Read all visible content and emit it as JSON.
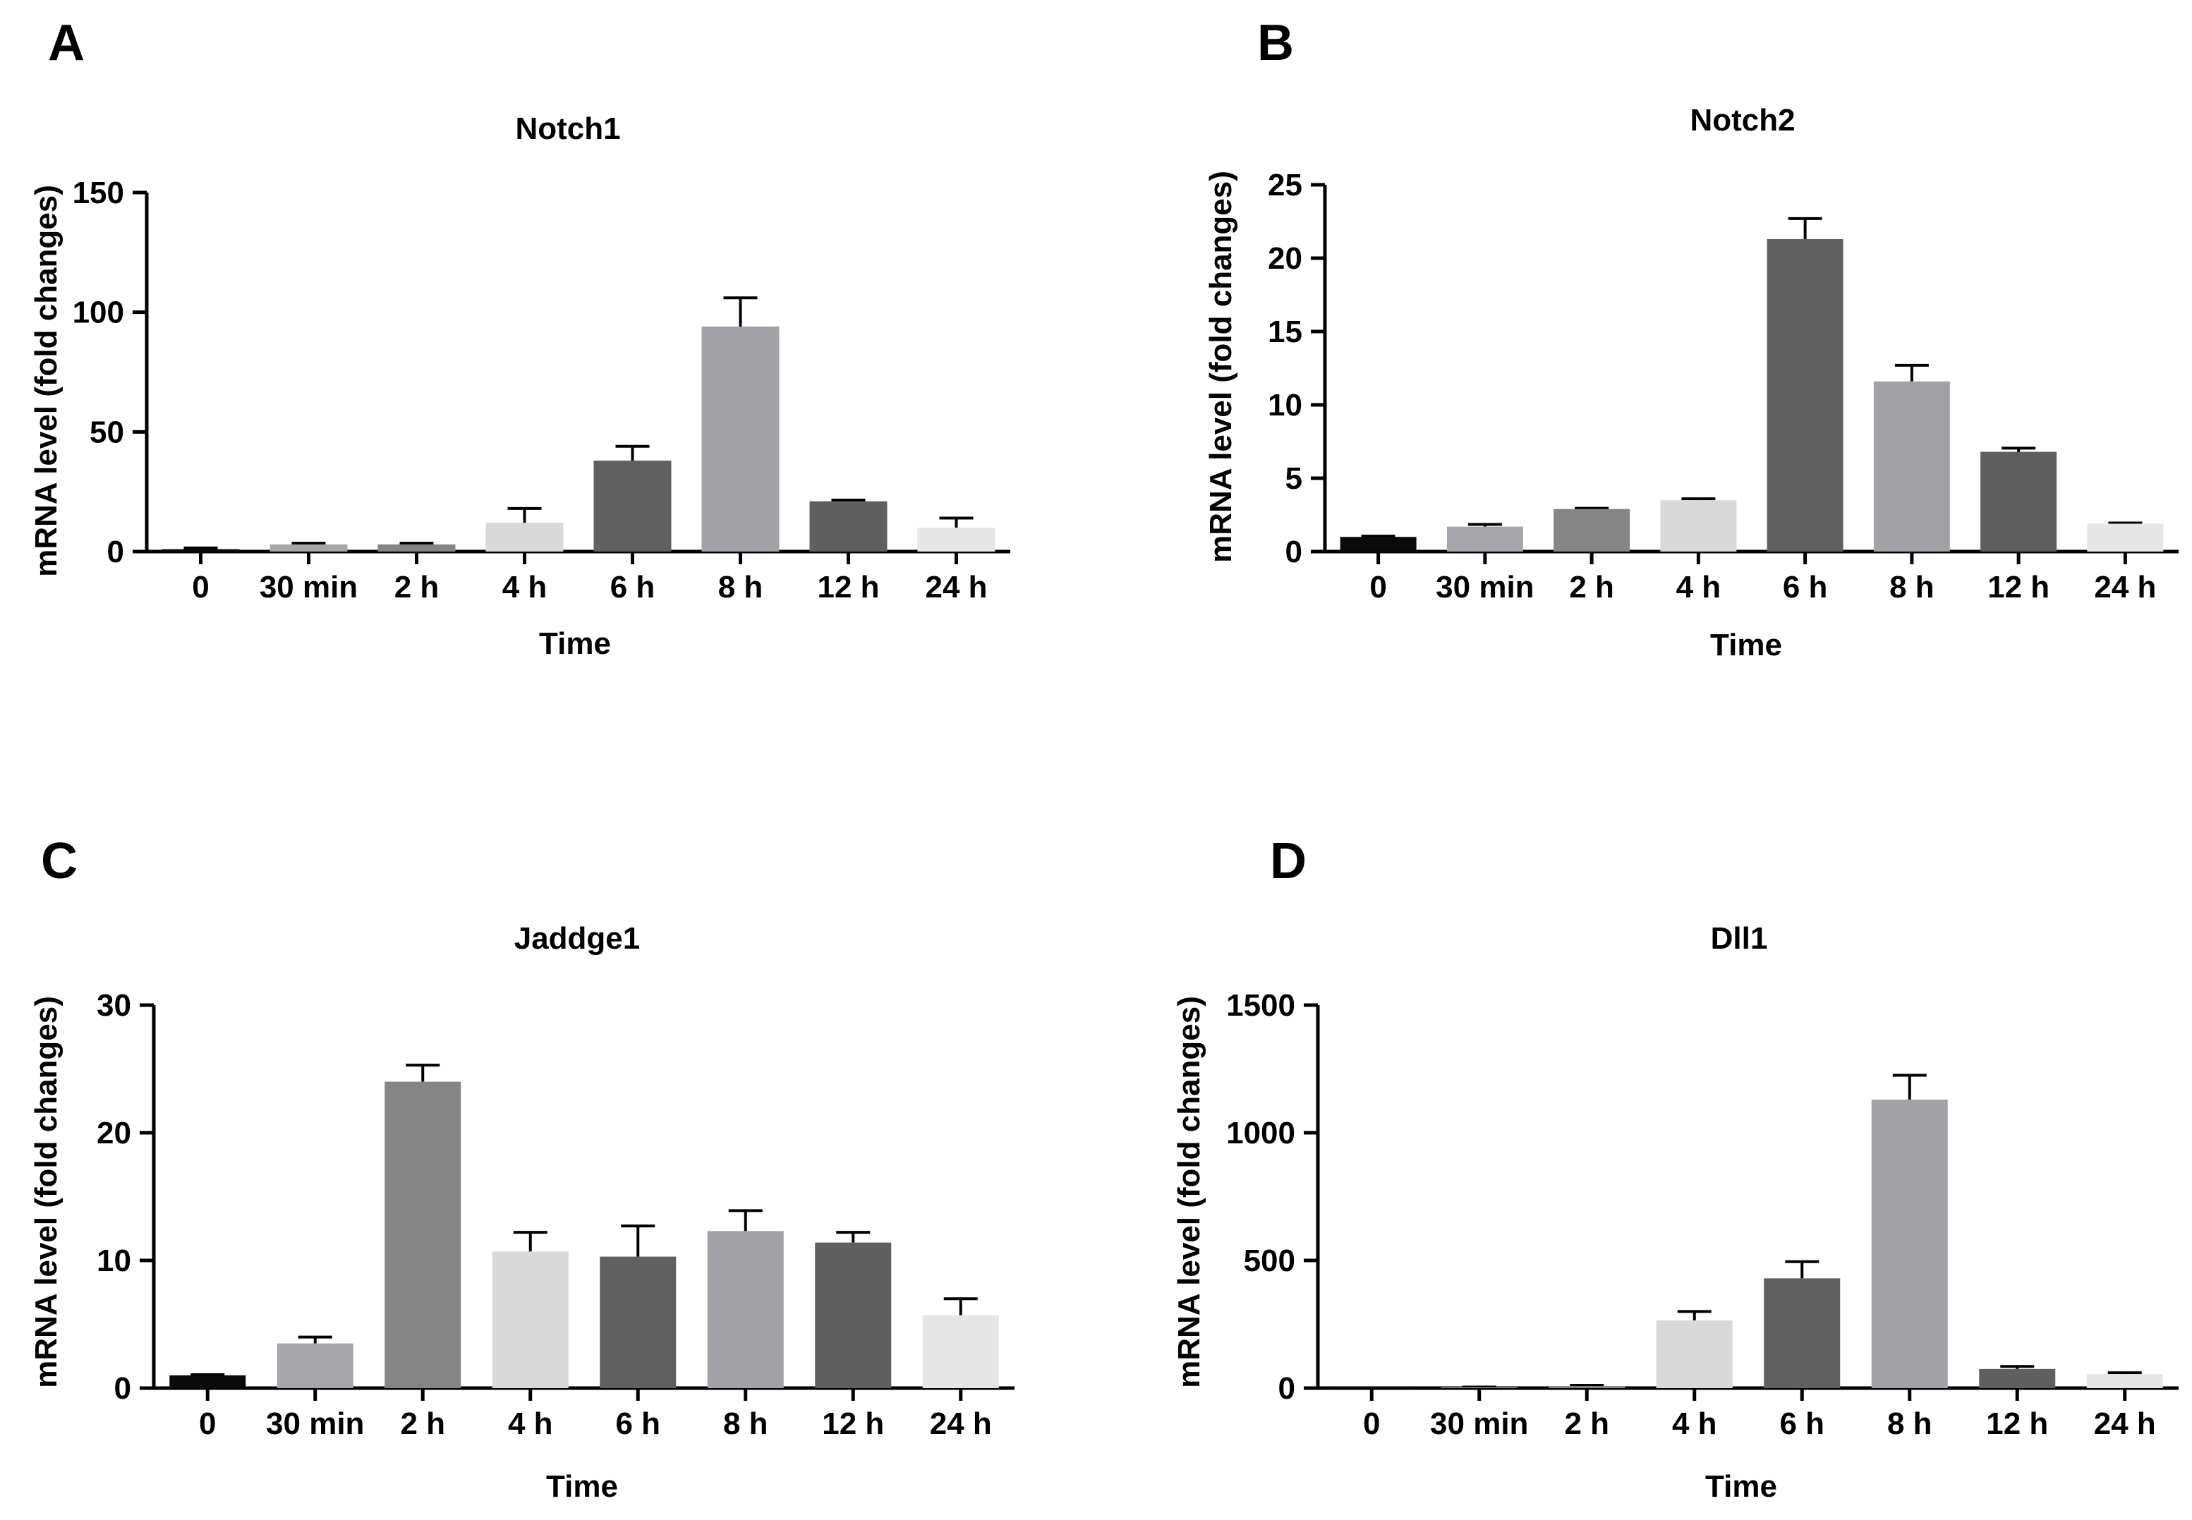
{
  "figure": {
    "panels": [
      "A",
      "B",
      "C",
      "D"
    ]
  },
  "chart_data": [
    {
      "panel": "A",
      "type": "bar",
      "title": "Notch1",
      "xlabel": "Time",
      "ylabel": "mRNA level (fold changes)",
      "ylim": [
        0,
        150
      ],
      "yticks": [
        0,
        50,
        100,
        150
      ],
      "categories": [
        "0",
        "30 min",
        "2 h",
        "4 h",
        "6 h",
        "8 h",
        "12 h",
        "24 h"
      ],
      "values": [
        1,
        3,
        3,
        12,
        38,
        94,
        21,
        10
      ],
      "errors": [
        0.5,
        0.5,
        0.5,
        6,
        6,
        12,
        0.5,
        4
      ],
      "colors": [
        "#0a0a0a",
        "#a6a6aa",
        "#858585",
        "#d9d9d9",
        "#606060",
        "#a1a1a6",
        "#5f5f5f",
        "#e6e6e6"
      ]
    },
    {
      "panel": "B",
      "type": "bar",
      "title": "Notch2",
      "xlabel": "Time",
      "ylabel": "mRNA level (fold changes)",
      "ylim": [
        0,
        25
      ],
      "yticks": [
        0,
        5,
        10,
        15,
        20,
        25
      ],
      "categories": [
        "0",
        "30 min",
        "2 h",
        "4 h",
        "6 h",
        "8 h",
        "12 h",
        "24 h"
      ],
      "values": [
        1.0,
        1.7,
        2.9,
        3.5,
        21.3,
        11.6,
        6.8,
        1.9
      ],
      "errors": [
        0.05,
        0.15,
        0.05,
        0.1,
        1.4,
        1.1,
        0.25,
        0.05
      ],
      "colors": [
        "#0a0a0a",
        "#a6a6aa",
        "#858585",
        "#d9d9d9",
        "#606060",
        "#a1a1a6",
        "#5f5f5f",
        "#e6e6e6"
      ]
    },
    {
      "panel": "C",
      "type": "bar",
      "title": "Jaddge1",
      "xlabel": "Time",
      "ylabel": "mRNA level (fold changes)",
      "ylim": [
        0,
        30
      ],
      "yticks": [
        0,
        10,
        20,
        30
      ],
      "categories": [
        "0",
        "30 min",
        "2 h",
        "4 h",
        "6 h",
        "8 h",
        "12 h",
        "24 h"
      ],
      "values": [
        1.0,
        3.5,
        24.0,
        10.7,
        10.3,
        12.3,
        11.4,
        5.7
      ],
      "errors": [
        0.05,
        0.5,
        1.3,
        1.5,
        2.4,
        1.6,
        0.8,
        1.3
      ],
      "colors": [
        "#0a0a0a",
        "#a6a6aa",
        "#858585",
        "#d9d9d9",
        "#606060",
        "#a1a1a6",
        "#5f5f5f",
        "#e6e6e6"
      ]
    },
    {
      "panel": "D",
      "type": "bar",
      "title": "Dll1",
      "xlabel": "Time",
      "ylabel": "mRNA level (fold changes)",
      "ylim": [
        0,
        1500
      ],
      "yticks": [
        0,
        500,
        1000,
        1500
      ],
      "categories": [
        "0",
        "30 min",
        "2 h",
        "4 h",
        "6 h",
        "8 h",
        "12 h",
        "24 h"
      ],
      "values": [
        1,
        3,
        8,
        265,
        430,
        1130,
        75,
        55
      ],
      "errors": [
        0.5,
        1,
        3,
        35,
        65,
        95,
        10,
        5
      ],
      "colors": [
        "#0a0a0a",
        "#a6a6aa",
        "#858585",
        "#d9d9d9",
        "#606060",
        "#a1a1a6",
        "#5f5f5f",
        "#e6e6e6"
      ]
    }
  ]
}
